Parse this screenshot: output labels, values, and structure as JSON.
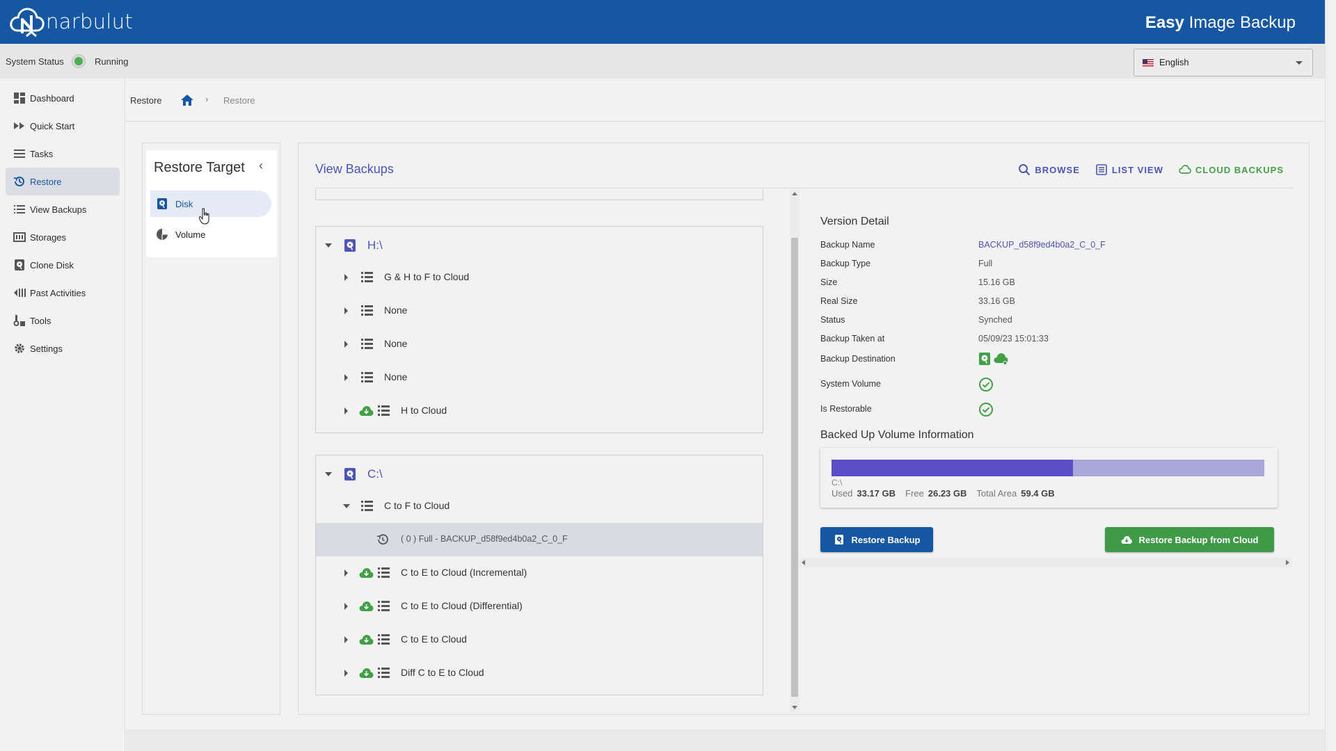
{
  "app": {
    "brand": "narbulut",
    "title_bold": "Easy",
    "title_rest": " Image Backup"
  },
  "status": {
    "label": "System Status",
    "value": "Running",
    "color": "#4caf50"
  },
  "language": {
    "selected": "English"
  },
  "sidebar": {
    "items": [
      {
        "label": "Dashboard",
        "icon": "dashboard-icon"
      },
      {
        "label": "Quick Start",
        "icon": "fast-forward-icon"
      },
      {
        "label": "Tasks",
        "icon": "list-icon"
      },
      {
        "label": "Restore",
        "icon": "restore-icon",
        "active": true
      },
      {
        "label": "View Backups",
        "icon": "list-bulleted-icon"
      },
      {
        "label": "Storages",
        "icon": "storage-icon"
      },
      {
        "label": "Clone Disk",
        "icon": "disk-icon"
      },
      {
        "label": "Past Activities",
        "icon": "history-icon"
      },
      {
        "label": "Tools",
        "icon": "tools-icon"
      },
      {
        "label": "Settings",
        "icon": "gear-icon"
      }
    ]
  },
  "breadcrumb": {
    "title": "Restore",
    "separator": "›",
    "current": "Restore"
  },
  "restore_target": {
    "title": "Restore Target",
    "collapse_glyph": "‹",
    "items": [
      {
        "label": "Disk",
        "icon": "disk-icon",
        "active": true
      },
      {
        "label": "Volume",
        "icon": "pie-icon"
      }
    ]
  },
  "view": {
    "title": "View Backups",
    "actions": [
      {
        "label": "BROWSE",
        "icon": "search-icon"
      },
      {
        "label": "LIST VIEW",
        "icon": "list-view-icon"
      },
      {
        "label": "CLOUD BACKUPS",
        "icon": "cloud-icon"
      }
    ]
  },
  "tree": {
    "groups": [
      {
        "drive": "H:\\",
        "rows": [
          {
            "label": "G & H to F to Cloud",
            "cloud": false
          },
          {
            "label": "None",
            "cloud": false
          },
          {
            "label": "None",
            "cloud": false
          },
          {
            "label": "None",
            "cloud": false
          },
          {
            "label": "H to Cloud",
            "cloud": true
          }
        ]
      },
      {
        "drive": "C:\\",
        "rows": [
          {
            "label": "C to F to Cloud",
            "cloud": false,
            "expanded": true
          },
          {
            "label": "( 0 ) Full - BACKUP_d58f9ed4b0a2_C_0_F",
            "version": true,
            "selected": true
          },
          {
            "label": "C to E to Cloud (Incremental)",
            "cloud": true
          },
          {
            "label": "C to E to Cloud (Differential)",
            "cloud": true
          },
          {
            "label": "C to E to Cloud",
            "cloud": true
          },
          {
            "label": "Diff C to E to Cloud",
            "cloud": true
          }
        ]
      }
    ]
  },
  "version_detail": {
    "title": "Version Detail",
    "rows": [
      {
        "key": "Backup Name",
        "value": "BACKUP_d58f9ed4b0a2_C_0_F",
        "link": true
      },
      {
        "key": "Backup Type",
        "value": "Full"
      },
      {
        "key": "Size",
        "value": "15.16 GB"
      },
      {
        "key": "Real Size",
        "value": "33.16 GB"
      },
      {
        "key": "Status",
        "value": "Synched"
      },
      {
        "key": "Backup Taken at",
        "value": "05/09/23 15:01:33"
      },
      {
        "key": "Backup Destination",
        "value": "",
        "icons": [
          "disk-icon",
          "cloud-icon"
        ]
      },
      {
        "key": "System Volume",
        "value": "",
        "check": true
      },
      {
        "key": "Is Restorable",
        "value": "",
        "check": true
      }
    ]
  },
  "volume_info": {
    "title": "Backed Up Volume Information",
    "name": "C:\\",
    "used_label": "Used",
    "used": "33.17 GB",
    "free_label": "Free",
    "free": "26.23 GB",
    "total_label": "Total Area",
    "total": "59.4 GB",
    "used_fraction": 0.5584
  },
  "buttons": {
    "restore": "Restore Backup",
    "restore_cloud": "Restore Backup from Cloud"
  },
  "colors": {
    "brand_blue": "#1557a3",
    "accent_purple": "#4a55b5",
    "green": "#43a047"
  }
}
